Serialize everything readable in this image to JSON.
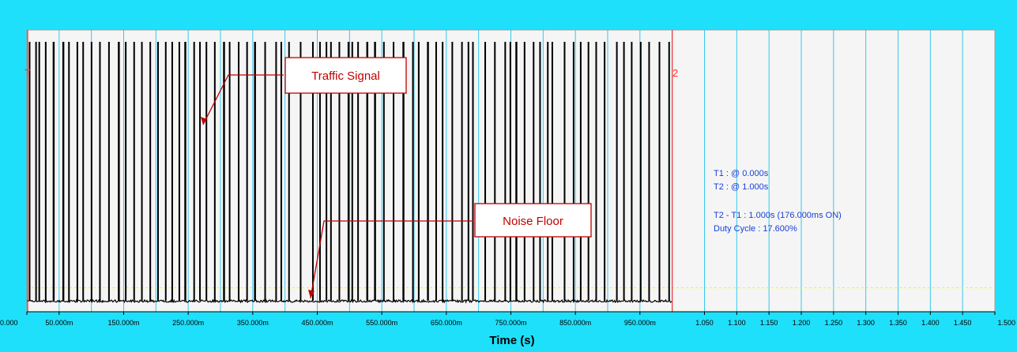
{
  "chart_data": {
    "type": "line",
    "title": "",
    "xlabel": "Time (s)",
    "ylabel": "",
    "xlim": [
      0,
      1.5
    ],
    "x_ticks": [
      0,
      0.05,
      0.15,
      0.25,
      0.35,
      0.45,
      0.55,
      0.65,
      0.75,
      0.85,
      0.95,
      1.05,
      1.1,
      1.15,
      1.2,
      1.25,
      1.3,
      1.35,
      1.4,
      1.45,
      1.5
    ],
    "x_tick_labels": [
      "0.000",
      "50.000m",
      "150.000m",
      "250.000m",
      "350.000m",
      "450.000m",
      "550.000m",
      "650.000m",
      "750.000m",
      "850.000m",
      "950.000m",
      "1.050",
      "1.100",
      "1.150",
      "1.200",
      "1.250",
      "1.300",
      "1.350",
      "1.400",
      "1.450",
      "1.500"
    ],
    "grid": true,
    "cursors": [
      {
        "label": "T1",
        "time": 0.0
      },
      {
        "label": "T2",
        "time": 1.0
      }
    ],
    "threshold_level": 0.05,
    "signal": {
      "high_level": 1.0,
      "noise_floor": 0.0,
      "pulses": [
        [
          0.003,
          0.005
        ],
        [
          0.013,
          0.015
        ],
        [
          0.018,
          0.02
        ],
        [
          0.028,
          0.03
        ],
        [
          0.04,
          0.043
        ],
        [
          0.055,
          0.058
        ],
        [
          0.064,
          0.066
        ],
        [
          0.077,
          0.079
        ],
        [
          0.086,
          0.088
        ],
        [
          0.099,
          0.101
        ],
        [
          0.112,
          0.114
        ],
        [
          0.126,
          0.128
        ],
        [
          0.141,
          0.144
        ],
        [
          0.152,
          0.154
        ],
        [
          0.165,
          0.167
        ],
        [
          0.177,
          0.179
        ],
        [
          0.19,
          0.192
        ],
        [
          0.202,
          0.204
        ],
        [
          0.214,
          0.216
        ],
        [
          0.224,
          0.226
        ],
        [
          0.235,
          0.237
        ],
        [
          0.244,
          0.247
        ],
        [
          0.258,
          0.26
        ],
        [
          0.267,
          0.269
        ],
        [
          0.277,
          0.279
        ],
        [
          0.29,
          0.292
        ],
        [
          0.304,
          0.307
        ],
        [
          0.313,
          0.315
        ],
        [
          0.327,
          0.329
        ],
        [
          0.34,
          0.342
        ],
        [
          0.352,
          0.355
        ],
        [
          0.368,
          0.37
        ],
        [
          0.385,
          0.387
        ],
        [
          0.393,
          0.395
        ],
        [
          0.405,
          0.407
        ],
        [
          0.423,
          0.425
        ],
        [
          0.442,
          0.444
        ],
        [
          0.453,
          0.455
        ],
        [
          0.463,
          0.465
        ],
        [
          0.47,
          0.472
        ],
        [
          0.483,
          0.485
        ],
        [
          0.497,
          0.5
        ],
        [
          0.503,
          0.505
        ],
        [
          0.512,
          0.514
        ],
        [
          0.526,
          0.529
        ],
        [
          0.538,
          0.541
        ],
        [
          0.552,
          0.554
        ],
        [
          0.567,
          0.569
        ],
        [
          0.582,
          0.585
        ],
        [
          0.597,
          0.599
        ],
        [
          0.606,
          0.608
        ],
        [
          0.62,
          0.623
        ],
        [
          0.633,
          0.635
        ],
        [
          0.643,
          0.645
        ],
        [
          0.658,
          0.66
        ],
        [
          0.673,
          0.675
        ],
        [
          0.683,
          0.685
        ],
        [
          0.69,
          0.692
        ],
        [
          0.709,
          0.711
        ],
        [
          0.724,
          0.726
        ],
        [
          0.74,
          0.742
        ],
        [
          0.748,
          0.75
        ],
        [
          0.757,
          0.76
        ],
        [
          0.77,
          0.772
        ],
        [
          0.784,
          0.786
        ],
        [
          0.794,
          0.796
        ],
        [
          0.806,
          0.808
        ],
        [
          0.813,
          0.815
        ],
        [
          0.832,
          0.834
        ],
        [
          0.846,
          0.848
        ],
        [
          0.857,
          0.859
        ],
        [
          0.869,
          0.871
        ],
        [
          0.881,
          0.883
        ],
        [
          0.894,
          0.896
        ],
        [
          0.913,
          0.915
        ],
        [
          0.924,
          0.926
        ],
        [
          0.936,
          0.938
        ],
        [
          0.95,
          0.952
        ],
        [
          0.963,
          0.965
        ],
        [
          0.979,
          0.981
        ],
        [
          0.994,
          0.996
        ]
      ]
    },
    "annotations": [
      {
        "text": "Traffic Signal"
      },
      {
        "text": "Noise Floor"
      }
    ],
    "readout": {
      "t1": "T1 : @ 0.000s",
      "t2": "T2 : @ 1.000s",
      "delta": "T2 - T1 : 1.000s (176.000ms ON)",
      "duty": "Duty Cycle : 17.600%"
    },
    "colors": {
      "frame": "#1ee0fb",
      "plot_bg": "#f5f5f5",
      "grid": "#35c8ef",
      "signal": "#000000",
      "cursor": "#ff3030",
      "threshold": "#f5f500",
      "annotation": "#c00000",
      "readout": "#1a40d8"
    }
  }
}
